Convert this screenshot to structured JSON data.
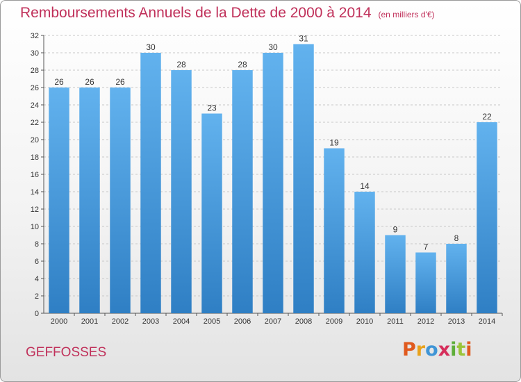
{
  "header": {
    "title": "Remboursements Annuels de la Dette de 2000 à 2014",
    "unit": "(en milliers d'€)"
  },
  "footer": {
    "commune": "GEFFOSSES",
    "logo": "Proxiti"
  },
  "colors": {
    "bar_light": "#62b2ee",
    "bar_dark": "#2f7fc4",
    "title": "#c0305a",
    "logo_letters": [
      "#e05a1e",
      "#e8a21c",
      "#3f95d6",
      "#d62e5b",
      "#5fae3a",
      "#9bc43a",
      "#e05a1e"
    ]
  },
  "chart_data": {
    "type": "bar",
    "title": "Remboursements Annuels de la Dette de 2000 à 2014",
    "categories": [
      "2000",
      "2001",
      "2002",
      "2003",
      "2004",
      "2005",
      "2006",
      "2007",
      "2008",
      "2009",
      "2010",
      "2011",
      "2012",
      "2013",
      "2014"
    ],
    "values": [
      26,
      26,
      26,
      30,
      28,
      23,
      28,
      30,
      31,
      19,
      14,
      9,
      7,
      8,
      22
    ],
    "xlabel": "",
    "ylabel": "",
    "ylim": [
      0,
      32
    ],
    "yticks": [
      0,
      2,
      4,
      6,
      8,
      10,
      12,
      14,
      16,
      18,
      20,
      22,
      24,
      26,
      28,
      30,
      32
    ],
    "grid": "dashed-horizontal",
    "legend": "none"
  }
}
